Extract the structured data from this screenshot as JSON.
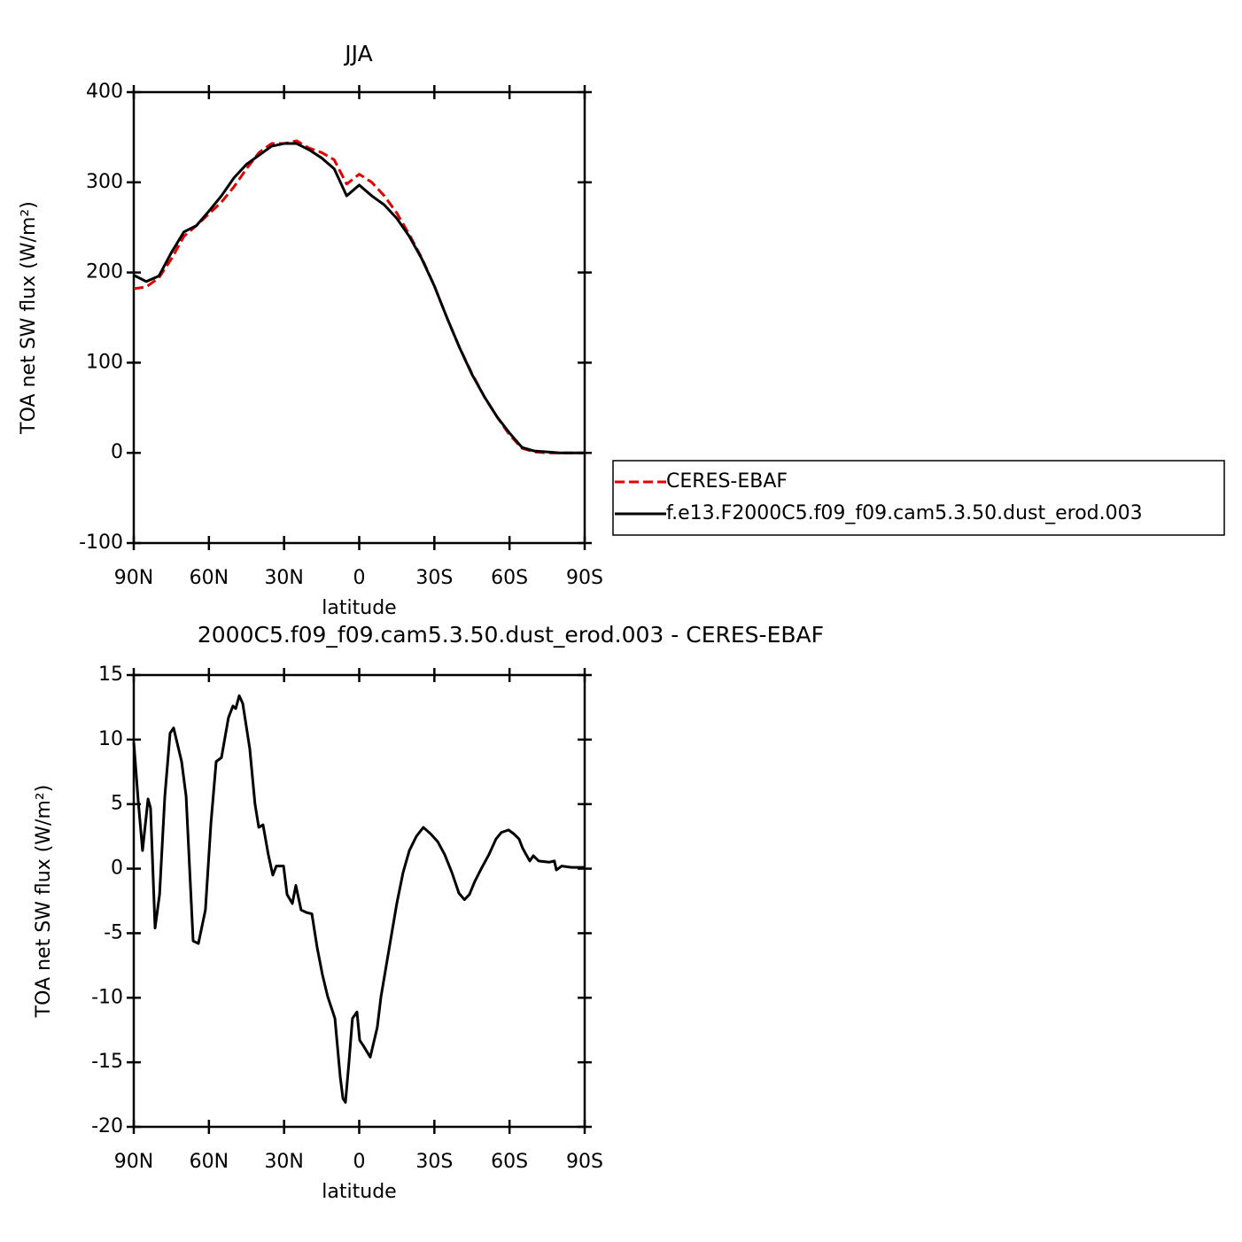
{
  "chart_data": [
    {
      "type": "line",
      "title": "JJA",
      "xlabel": "latitude",
      "ylabel": "TOA net SW flux (W/m²)",
      "x": [
        90,
        85,
        80,
        75,
        70,
        65,
        60,
        55,
        50,
        45,
        40,
        35,
        30,
        25,
        20,
        15,
        10,
        5,
        0,
        -5,
        -10,
        -15,
        -20,
        -25,
        -30,
        -35,
        -40,
        -45,
        -50,
        -55,
        -60,
        -65,
        -70,
        -75,
        -80,
        -85,
        -90
      ],
      "series": [
        {
          "name": "CERES-EBAF",
          "color": "#e00000",
          "dashed": true,
          "values": [
            182,
            184,
            194,
            215,
            240,
            252,
            265,
            278,
            295,
            315,
            333,
            343,
            343,
            346,
            338,
            333,
            325,
            298,
            309,
            300,
            285,
            266,
            242,
            216,
            185,
            150,
            117,
            88,
            62,
            40,
            20,
            5,
            1,
            0,
            0,
            0,
            0
          ]
        },
        {
          "name": "f.e13.F2000C5.f09_f09.cam5.3.50.dust_erod.003",
          "color": "#000000",
          "dashed": false,
          "values": [
            197,
            190,
            196,
            222,
            245,
            252,
            268,
            285,
            305,
            320,
            330,
            340,
            343,
            343,
            336,
            327,
            315,
            285,
            297,
            285,
            275,
            260,
            240,
            215,
            185,
            150,
            117,
            87,
            62,
            40,
            22,
            6,
            2,
            1,
            0,
            0,
            0
          ]
        }
      ],
      "xlim": [
        90,
        -90
      ],
      "xticks": [
        {
          "value": 90,
          "label": "90N"
        },
        {
          "value": 60,
          "label": "60N"
        },
        {
          "value": 30,
          "label": "30N"
        },
        0,
        {
          "value": -30,
          "label": "30S"
        },
        {
          "value": -60,
          "label": "60S"
        },
        {
          "value": -90,
          "label": "90S"
        }
      ],
      "ylim": [
        -100,
        400
      ],
      "yticks": [
        -100,
        0,
        100,
        200,
        300,
        400
      ],
      "legend": "right"
    },
    {
      "type": "line",
      "title": "2000C5.f09_f09.cam5.3.50.dust_erod.003 - CERES-EBAF",
      "xlabel": "latitude",
      "ylabel": "TOA net SW flux (W/m²)",
      "x": [
        90,
        88.2,
        86.5,
        84.3,
        83.3,
        81.5,
        79.7,
        77.6,
        75.5,
        74.1,
        70.9,
        69.1,
        66.3,
        64.2,
        61.4,
        59.2,
        57.1,
        55,
        52.2,
        50.4,
        49.3,
        47.9,
        46.5,
        43.7,
        41.6,
        40.1,
        38.4,
        36.3,
        34.5,
        33.1,
        30.2,
        28.8,
        26.7,
        25.3,
        23.2,
        21,
        18.9,
        16.8,
        14.7,
        12.6,
        9.7,
        7.6,
        6.5,
        5.5,
        4.1,
        2.7,
        0.9,
        -0.2,
        -1.6,
        -4.4,
        -7.2,
        -8.7,
        -10.8,
        -12.9,
        -15,
        -17.5,
        -20,
        -22.8,
        -25.6,
        -28.5,
        -31.3,
        -34.1,
        -37,
        -39.8,
        -42,
        -44,
        -46.1,
        -49,
        -51.8,
        -54.6,
        -56.7,
        -59.6,
        -61.7,
        -63.8,
        -65.2,
        -66.6,
        -68.1,
        -69.5,
        -71.6,
        -75.8,
        -77.9,
        -78.7,
        -80.8,
        -84.7,
        -90
      ],
      "color": "#000000",
      "values": [
        9.8,
        5.2,
        1.4,
        5.4,
        4.7,
        -4.6,
        -2,
        5.6,
        10.5,
        10.9,
        8.3,
        5.6,
        -5.6,
        -5.8,
        -3.2,
        3.5,
        8.3,
        8.6,
        11.7,
        12.6,
        12.4,
        13.4,
        12.8,
        9.3,
        5,
        3.2,
        3.4,
        1.1,
        -0.5,
        0.2,
        0.2,
        -2,
        -2.7,
        -1.3,
        -3.2,
        -3.4,
        -3.5,
        -6.1,
        -8.2,
        -9.9,
        -11.6,
        -16.1,
        -17.8,
        -18.1,
        -15,
        -11.6,
        -11.1,
        -13.3,
        -13.7,
        -14.6,
        -12.3,
        -9.9,
        -7.5,
        -5.1,
        -2.7,
        -0.3,
        1.4,
        2.5,
        3.2,
        2.7,
        2.1,
        1.1,
        -0.3,
        -1.9,
        -2.4,
        -2,
        -1,
        0.1,
        1.1,
        2.3,
        2.8,
        3,
        2.7,
        2.3,
        1.6,
        1.1,
        0.6,
        1,
        0.6,
        0.5,
        0.6,
        -0.1,
        0.2,
        0.1,
        0.1
      ],
      "xlim": [
        90,
        -90
      ],
      "xticks": [
        {
          "value": 90,
          "label": "90N"
        },
        {
          "value": 60,
          "label": "60N"
        },
        {
          "value": 30,
          "label": "30N"
        },
        0,
        {
          "value": -30,
          "label": "30S"
        },
        {
          "value": -60,
          "label": "60S"
        },
        {
          "value": -90,
          "label": "90S"
        }
      ],
      "ylim": [
        -20,
        15
      ],
      "yticks": [
        -20,
        -15,
        -10,
        -5,
        0,
        5,
        10,
        15
      ]
    }
  ]
}
